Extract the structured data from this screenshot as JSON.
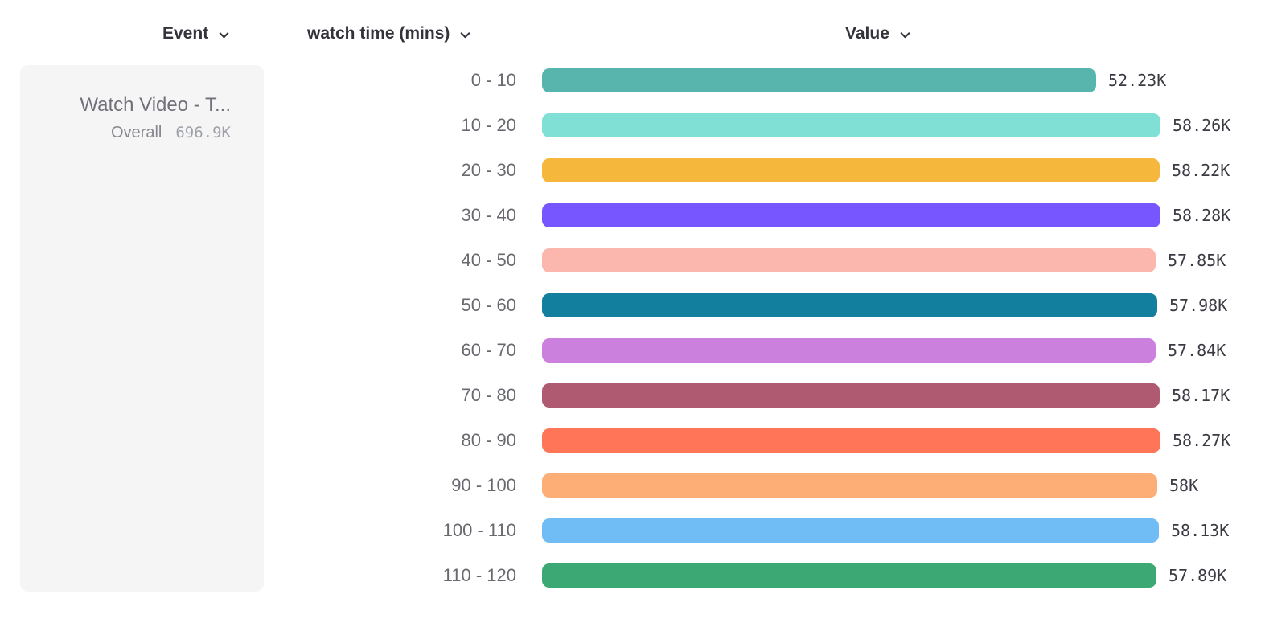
{
  "header": {
    "columns": [
      {
        "label": "Event"
      },
      {
        "label": "watch time (mins)"
      },
      {
        "label": "Value"
      }
    ]
  },
  "event_card": {
    "title": "Watch Video - T...",
    "overall_label": "Overall",
    "overall_value": "696.9K"
  },
  "chart_data": {
    "type": "bar",
    "orientation": "horizontal",
    "title": "",
    "xlabel": "Value",
    "ylabel": "watch time (mins)",
    "categories": [
      "0 - 10",
      "10 - 20",
      "20 - 30",
      "30 - 40",
      "40 - 50",
      "50 - 60",
      "60 - 70",
      "70 - 80",
      "80 - 90",
      "90 - 100",
      "100 - 110",
      "110 - 120"
    ],
    "values": [
      52230,
      58260,
      58220,
      58280,
      57850,
      57980,
      57840,
      58170,
      58270,
      58000,
      58130,
      57890
    ],
    "value_labels": [
      "52.23K",
      "58.26K",
      "58.22K",
      "58.28K",
      "57.85K",
      "57.98K",
      "57.84K",
      "58.17K",
      "58.27K",
      "58K",
      "58.13K",
      "57.89K"
    ],
    "bar_colors": [
      "#58B5AE",
      "#80E0D5",
      "#F6B83C",
      "#7856FF",
      "#FBB6AD",
      "#137F9E",
      "#CA80DC",
      "#B05A71",
      "#FF7557",
      "#FDAE77",
      "#70BCF4",
      "#3CA873"
    ],
    "xlim": [
      0,
      58280
    ],
    "grid": false,
    "legend": false
  },
  "colors": {
    "background": "#FFFFFF",
    "card_background": "#F5F5F6",
    "header_text": "#33333C",
    "category_text": "#68686F",
    "value_text": "#3A3A43",
    "card_title_text": "#70707A",
    "card_overall_text": "#87878F",
    "card_value_text": "#9FA1A8"
  },
  "icons": {
    "chevron_down": "v"
  }
}
